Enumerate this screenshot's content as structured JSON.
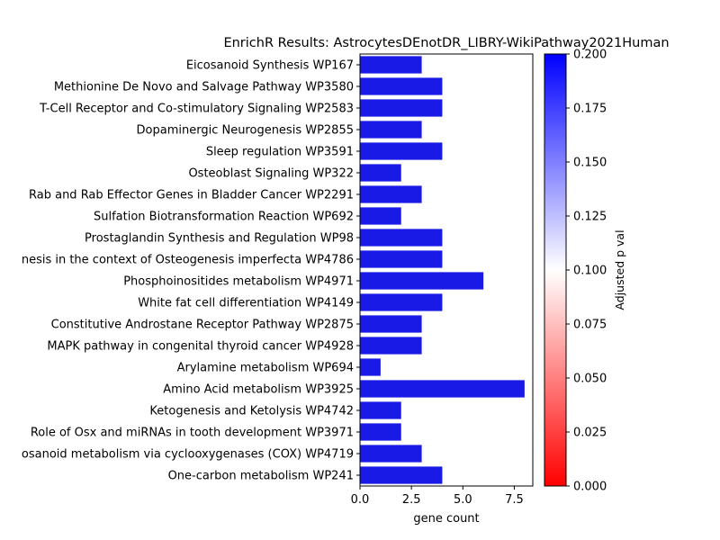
{
  "chart_data": {
    "type": "bar",
    "orientation": "horizontal",
    "title": "EnrichR Results: AstrocytesDEnotDR_LIBRY-WikiPathway2021Human",
    "xlabel": "gene count",
    "ylabel": "",
    "xlim": [
      0,
      8.4
    ],
    "xticks": [
      0,
      2.5,
      5,
      7.5
    ],
    "xtick_labels": [
      "0.0",
      "2.5",
      "5.0",
      "7.5"
    ],
    "categories": [
      "Eicosanoid Synthesis WP167",
      "Methionine De Novo and Salvage Pathway WP3580",
      "T-Cell Receptor and Co-stimulatory Signaling WP2583",
      "Dopaminergic Neurogenesis WP2855",
      "Sleep regulation WP3591",
      "Osteoblast Signaling WP322",
      "Rab and Rab Effector Genes in Bladder Cancer WP2291",
      "Sulfation Biotransformation Reaction WP692",
      "Prostaglandin Synthesis and Regulation WP98",
      "nesis in the context of Osteogenesis imperfecta WP4786",
      "Phosphoinositides metabolism WP4971",
      "White fat cell differentiation WP4149",
      "Constitutive Androstane Receptor Pathway WP2875",
      "MAPK pathway in congenital thyroid cancer WP4928",
      "Arylamine metabolism WP694",
      "Amino Acid metabolism WP3925",
      "Ketogenesis and Ketolysis WP4742",
      "Role of Osx and miRNAs in tooth development WP3971",
      "osanoid metabolism via cyclooxygenases (COX) WP4719",
      "One-carbon metabolism WP241"
    ],
    "values": [
      3,
      4,
      4,
      3,
      4,
      2,
      3,
      2,
      4,
      4,
      6,
      4,
      3,
      3,
      1,
      8,
      2,
      2,
      3,
      4
    ],
    "bar_color": "#1a1ae6",
    "colorbar": {
      "label": "Adjusted p val",
      "range": [
        0.0,
        0.2
      ],
      "ticks": [
        0.0,
        0.025,
        0.05,
        0.075,
        0.1,
        0.125,
        0.15,
        0.175,
        0.2
      ],
      "tick_labels": [
        "0.000",
        "0.025",
        "0.050",
        "0.075",
        "0.100",
        "0.125",
        "0.150",
        "0.175",
        "0.200"
      ],
      "colors": [
        "#ff0000",
        "#ffffff",
        "#0000ff"
      ]
    },
    "grid": false,
    "legend": "none"
  }
}
